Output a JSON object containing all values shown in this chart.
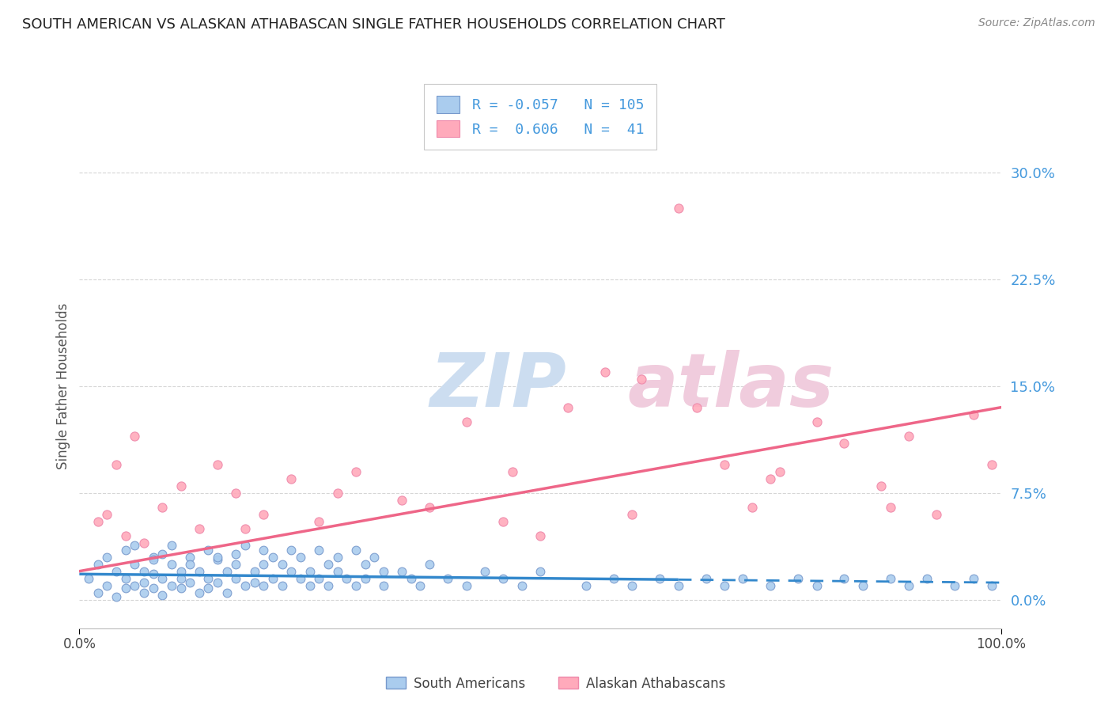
{
  "title": "SOUTH AMERICAN VS ALASKAN ATHABASCAN SINGLE FATHER HOUSEHOLDS CORRELATION CHART",
  "source": "Source: ZipAtlas.com",
  "ylabel": "Single Father Households",
  "ytick_vals": [
    0.0,
    7.5,
    15.0,
    22.5,
    30.0
  ],
  "xlim": [
    0.0,
    100.0
  ],
  "ylim": [
    -2.0,
    32.0
  ],
  "color_blue": "#aaccee",
  "color_pink": "#ffaabb",
  "color_blue_edge": "#7799cc",
  "color_pink_edge": "#ee88aa",
  "color_blue_text": "#4499dd",
  "trend_blue": "#3388cc",
  "trend_pink": "#ee6688",
  "watermark_color": "#d8e4f0",
  "watermark_color2": "#f0d8e4",
  "sa_trend_y0": 1.8,
  "sa_trend_y1": 1.2,
  "sa_trend_solid_end": 65,
  "ath_trend_y0": 2.0,
  "ath_trend_y1": 13.5,
  "outlier_x": 65,
  "outlier_y": 27.5,
  "sa_x": [
    1,
    2,
    2,
    3,
    3,
    4,
    4,
    5,
    5,
    5,
    6,
    6,
    6,
    7,
    7,
    7,
    8,
    8,
    8,
    8,
    9,
    9,
    9,
    10,
    10,
    10,
    11,
    11,
    11,
    12,
    12,
    12,
    13,
    13,
    14,
    14,
    14,
    15,
    15,
    15,
    16,
    16,
    17,
    17,
    17,
    18,
    18,
    19,
    19,
    20,
    20,
    20,
    21,
    21,
    22,
    22,
    23,
    23,
    24,
    24,
    25,
    25,
    26,
    26,
    27,
    27,
    28,
    28,
    29,
    30,
    30,
    31,
    31,
    32,
    33,
    33,
    35,
    36,
    37,
    38,
    40,
    42,
    44,
    46,
    48,
    50,
    55,
    58,
    60,
    63,
    65,
    68,
    70,
    72,
    75,
    78,
    80,
    83,
    85,
    88,
    90,
    92,
    95,
    97,
    99
  ],
  "sa_y": [
    1.5,
    2.5,
    0.5,
    3.0,
    1.0,
    2.0,
    0.2,
    3.5,
    1.5,
    0.8,
    2.5,
    1.0,
    3.8,
    2.0,
    1.2,
    0.5,
    3.0,
    1.8,
    0.8,
    2.8,
    1.5,
    3.2,
    0.3,
    2.5,
    1.0,
    3.8,
    2.0,
    0.8,
    1.5,
    3.0,
    1.2,
    2.5,
    0.5,
    2.0,
    3.5,
    1.5,
    0.8,
    2.8,
    1.2,
    3.0,
    2.0,
    0.5,
    3.2,
    1.5,
    2.5,
    1.0,
    3.8,
    2.0,
    1.2,
    3.5,
    1.0,
    2.5,
    1.5,
    3.0,
    2.5,
    1.0,
    3.5,
    2.0,
    1.5,
    3.0,
    2.0,
    1.0,
    3.5,
    1.5,
    2.5,
    1.0,
    3.0,
    2.0,
    1.5,
    3.5,
    1.0,
    2.5,
    1.5,
    3.0,
    2.0,
    1.0,
    2.0,
    1.5,
    1.0,
    2.5,
    1.5,
    1.0,
    2.0,
    1.5,
    1.0,
    2.0,
    1.0,
    1.5,
    1.0,
    1.5,
    1.0,
    1.5,
    1.0,
    1.5,
    1.0,
    1.5,
    1.0,
    1.5,
    1.0,
    1.5,
    1.0,
    1.5,
    1.0,
    1.5,
    1.0
  ],
  "ath_x": [
    2,
    3,
    4,
    5,
    6,
    7,
    9,
    11,
    13,
    15,
    17,
    20,
    23,
    26,
    30,
    35,
    38,
    42,
    46,
    50,
    53,
    57,
    61,
    65,
    67,
    70,
    73,
    76,
    80,
    83,
    87,
    90,
    93,
    97,
    99,
    18,
    28,
    47,
    60,
    75,
    88
  ],
  "ath_y": [
    5.5,
    6.0,
    9.5,
    4.5,
    11.5,
    4.0,
    6.5,
    8.0,
    5.0,
    9.5,
    7.5,
    6.0,
    8.5,
    5.5,
    9.0,
    7.0,
    6.5,
    12.5,
    5.5,
    4.5,
    13.5,
    16.0,
    15.5,
    27.5,
    13.5,
    9.5,
    6.5,
    9.0,
    12.5,
    11.0,
    8.0,
    11.5,
    6.0,
    13.0,
    9.5,
    5.0,
    7.5,
    9.0,
    6.0,
    8.5,
    6.5
  ]
}
